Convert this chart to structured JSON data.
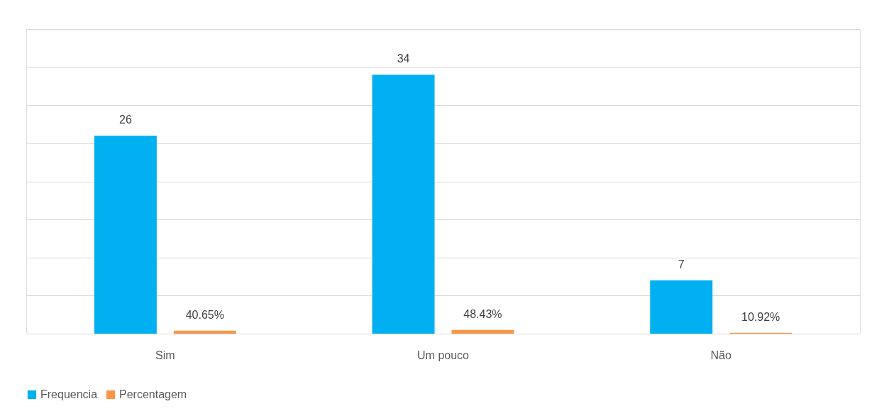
{
  "chart_data": {
    "type": "bar",
    "categories": [
      "Sim",
      "Um pouco",
      "Não"
    ],
    "series": [
      {
        "name": "Frequencia",
        "color": "#00b0f0",
        "values": [
          26,
          34,
          7
        ],
        "value_labels": [
          "26",
          "34",
          "7"
        ]
      },
      {
        "name": "Percentagem",
        "color": "#f79646",
        "values": [
          0.4065,
          0.4843,
          0.1092
        ],
        "value_labels": [
          "40.65%",
          "48.43%",
          "10.92%"
        ]
      }
    ],
    "ylim": [
      0,
      40
    ],
    "yticks": [
      {
        "value": 0,
        "label": null
      },
      {
        "value": 5,
        "label": null
      },
      {
        "value": 10,
        "label": null
      },
      {
        "value": 15,
        "label": null
      },
      {
        "value": 20,
        "label": null
      },
      {
        "value": 25,
        "label": null
      },
      {
        "value": 30,
        "label": null
      },
      {
        "value": 35,
        "label": null
      },
      {
        "value": 40,
        "label": null
      }
    ],
    "tick_labels": "x",
    "grid": "y",
    "legend": "bottom"
  }
}
